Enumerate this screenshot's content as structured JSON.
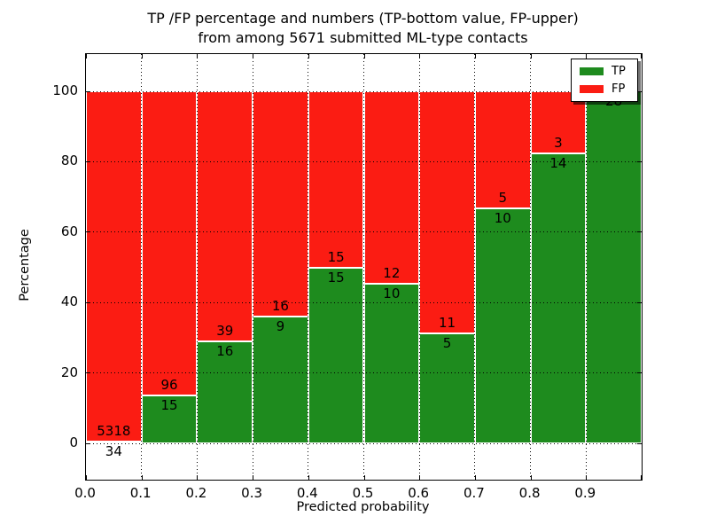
{
  "colors": {
    "tp": "#1e8b1e",
    "fp": "#fb1c13",
    "bar_edge": "#ffffff",
    "grid": "#000000",
    "frame": "#000000",
    "background": "#ffffff"
  },
  "chart_data": {
    "type": "bar",
    "stacked": true,
    "title": "TP /FP percentage and numbers (TP-bottom value, FP-upper)\nfrom among 5671 submitted ML-type contacts",
    "title_line1": "TP /FP percentage and numbers (TP-bottom value, FP-upper)",
    "title_line2": "from among 5671 submitted ML-type contacts",
    "xlabel": "Predicted probability",
    "ylabel": "Percentage",
    "x_tick_labels": [
      "0.0",
      "0.1",
      "0.2",
      "0.3",
      "0.4",
      "0.5",
      "0.6",
      "0.7",
      "0.8",
      "0.9"
    ],
    "y_tick_values": [
      0,
      20,
      40,
      60,
      80,
      100
    ],
    "xlim": [
      0.0,
      1.0
    ],
    "ylim": [
      -10.3,
      110.6
    ],
    "bin_width": 0.1,
    "grid": {
      "style": "dotted",
      "color": "#000000",
      "above_bars": true
    },
    "value_semantics": "each bin stacked to 100%; TP bottom segment labeled with TP count, FP upper segment labeled with FP count",
    "legend": {
      "position": "upper-right",
      "entries": [
        {
          "label": "TP",
          "color": "#1e8b1e"
        },
        {
          "label": "FP",
          "color": "#fb1c13"
        }
      ]
    },
    "bins": [
      {
        "range": "0.0-0.1",
        "tp": 34,
        "fp": 5318,
        "tp_pct": 0.64
      },
      {
        "range": "0.1-0.2",
        "tp": 15,
        "fp": 96,
        "tp_pct": 13.51
      },
      {
        "range": "0.2-0.3",
        "tp": 16,
        "fp": 39,
        "tp_pct": 29.09
      },
      {
        "range": "0.3-0.4",
        "tp": 9,
        "fp": 16,
        "tp_pct": 36.0
      },
      {
        "range": "0.4-0.5",
        "tp": 15,
        "fp": 15,
        "tp_pct": 50.0
      },
      {
        "range": "0.5-0.6",
        "tp": 10,
        "fp": 12,
        "tp_pct": 45.45
      },
      {
        "range": "0.6-0.7",
        "tp": 5,
        "fp": 11,
        "tp_pct": 31.25
      },
      {
        "range": "0.7-0.8",
        "tp": 10,
        "fp": 5,
        "tp_pct": 66.67
      },
      {
        "range": "0.8-0.9",
        "tp": 14,
        "fp": 3,
        "tp_pct": 82.35
      },
      {
        "range": "0.9-1.0",
        "tp": 28,
        "fp": 0,
        "tp_pct": 100.0
      }
    ]
  }
}
